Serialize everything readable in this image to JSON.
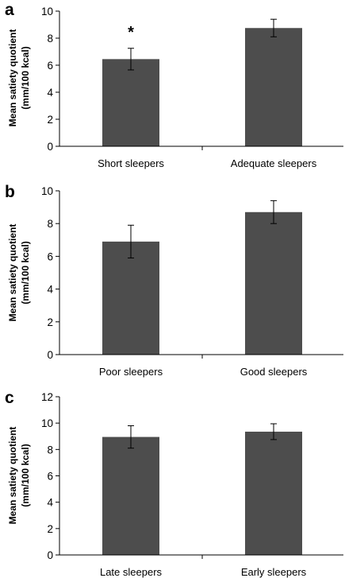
{
  "colors": {
    "bar": "#4d4d4d",
    "axis": "#000000",
    "error_bar": "#000000"
  },
  "chart_data": [
    {
      "type": "bar",
      "panel": "a",
      "categories": [
        "Short sleepers",
        "Adequate sleepers"
      ],
      "values": [
        6.45,
        8.75
      ],
      "errors": [
        0.8,
        0.65
      ],
      "ylabel_line1": "Mean satiety quotient",
      "ylabel_line2": "(mm/100 kcal)",
      "ylim": [
        0,
        10
      ],
      "yticks": [
        0,
        2,
        4,
        6,
        8,
        10
      ],
      "annotations": [
        {
          "text": "*",
          "category_index": 0
        }
      ],
      "grid": false
    },
    {
      "type": "bar",
      "panel": "b",
      "categories": [
        "Poor sleepers",
        "Good sleepers"
      ],
      "values": [
        6.9,
        8.7
      ],
      "errors": [
        1.0,
        0.7
      ],
      "ylabel_line1": "Mean satiety quotient",
      "ylabel_line2": "(mm/100 kcal)",
      "ylim": [
        0,
        10
      ],
      "yticks": [
        0,
        2,
        4,
        6,
        8,
        10
      ],
      "annotations": [],
      "grid": false
    },
    {
      "type": "bar",
      "panel": "c",
      "categories": [
        "Late sleepers",
        "Early sleepers"
      ],
      "values": [
        8.95,
        9.35
      ],
      "errors": [
        0.85,
        0.6
      ],
      "ylabel_line1": "Mean satiety quotient",
      "ylabel_line2": "(mm/100 kcal)",
      "ylim": [
        0,
        12
      ],
      "yticks": [
        0,
        2,
        4,
        6,
        8,
        10,
        12
      ],
      "annotations": [],
      "grid": false
    }
  ]
}
